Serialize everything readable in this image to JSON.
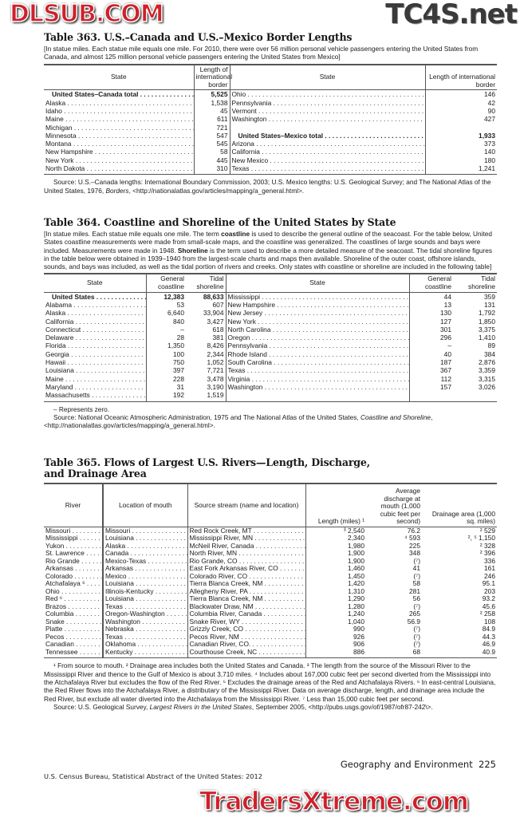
{
  "t363": {
    "title": "Table 363. U.S.–Canada and U.S.–Mexico Border Lengths",
    "intro": "[In statue miles. Each statue mile equals one mile. For 2010, there were over 56 million personal vehicle passengers entering the United States from Canada, and almost 125 million personal vehicle passengers entering the United States from Mexico]",
    "headers": [
      "State",
      "Length of international border",
      "State",
      "Length of international border"
    ],
    "rows": [
      [
        {
          "s": "United States–Canada total",
          "b": true,
          "i": true
        },
        "5,525",
        {
          "s": "Ohio"
        },
        "146"
      ],
      [
        {
          "s": "Alaska"
        },
        "1,538",
        {
          "s": "Pennsylvania"
        },
        "42"
      ],
      [
        {
          "s": "Idaho"
        },
        "45",
        {
          "s": "Vermont"
        },
        "90"
      ],
      [
        {
          "s": "Maine"
        },
        "611",
        {
          "s": "Washington"
        },
        "427"
      ],
      [
        {
          "s": "Michigan"
        },
        "721",
        {
          "s": "",
          "nodots": true
        },
        ""
      ],
      [
        {
          "s": "Minnesota"
        },
        "547",
        {
          "s": "United States–Mexico total",
          "b": true,
          "i": true
        },
        "1,933"
      ],
      [
        {
          "s": "Montana"
        },
        "545",
        {
          "s": "Arizona"
        },
        "373"
      ],
      [
        {
          "s": "New Hampshire"
        },
        "58",
        {
          "s": "California"
        },
        "140"
      ],
      [
        {
          "s": "New York"
        },
        "445",
        {
          "s": "New Mexico"
        },
        "180"
      ],
      [
        {
          "s": "North Dakota"
        },
        "310",
        {
          "s": "Texas"
        },
        "1,241"
      ]
    ],
    "source_pre": "Source: U.S.–Canada lengths: International Boundary Commission, 2003; U.S. Mexico lengths: U.S. Geological Survey; and The National Atlas of the United States, 1976, ",
    "source_italic": "Borders",
    "source_post": ", <http://nationalatlas.gov/articles/mapping/a_general.html>."
  },
  "t364": {
    "title": "Table 364. Coastline and Shoreline of the United States by State",
    "intro_parts": [
      "[In statue miles. Each statue mile equals one mile. The term ",
      "coastline",
      " is used to describe the general outline of the seacoast. For the table below, United States coastline measurements were made from small-scale maps, and the coastline was generalized. The coastlines of large sounds and bays were included. Measurements were made in 1948. ",
      "Shoreline",
      " is the term used to describe a more detailed measure of the seacoast. The tidal shoreline figures in the table below were obtained in 1939–1940 from the largest-scale charts and maps then available. Shoreline of the outer coast, offshore islands, sounds, and bays was included, as well as the tidal portion of rivers and creeks. Only states with coastline or shoreline are included in the following table]"
    ],
    "headers": [
      "State",
      "General coastline",
      "Tidal shoreline",
      "State",
      "General coastline",
      "Tidal shoreline"
    ],
    "rows": [
      [
        {
          "s": "United States",
          "b": true,
          "i": true
        },
        "12,383",
        "88,633",
        {
          "s": "Mississippi"
        },
        "44",
        "359"
      ],
      [
        {
          "s": "Alabama"
        },
        "53",
        "607",
        {
          "s": "New Hampshire"
        },
        "13",
        "131"
      ],
      [
        {
          "s": "Alaska"
        },
        "6,640",
        "33,904",
        {
          "s": "New Jersey"
        },
        "130",
        "1,792"
      ],
      [
        {
          "s": "California"
        },
        "840",
        "3,427",
        {
          "s": "New York"
        },
        "127",
        "1,850"
      ],
      [
        {
          "s": "Connecticut"
        },
        "–",
        "618",
        {
          "s": "North Carolina"
        },
        "301",
        "3,375"
      ],
      [
        {
          "s": "Delaware"
        },
        "28",
        "381",
        {
          "s": "Oregon"
        },
        "296",
        "1,410"
      ],
      [
        {
          "s": "Florida"
        },
        "1,350",
        "8,426",
        {
          "s": "Pennsylvania"
        },
        "–",
        "89"
      ],
      [
        {
          "s": "Georgia"
        },
        "100",
        "2,344",
        {
          "s": "Rhode Island"
        },
        "40",
        "384"
      ],
      [
        {
          "s": "Hawaii"
        },
        "750",
        "1,052",
        {
          "s": "South Carolina"
        },
        "187",
        "2,876"
      ],
      [
        {
          "s": "Louisiana"
        },
        "397",
        "7,721",
        {
          "s": "Texas"
        },
        "367",
        "3,359"
      ],
      [
        {
          "s": "Maine"
        },
        "228",
        "3,478",
        {
          "s": "Virginia"
        },
        "112",
        "3,315"
      ],
      [
        {
          "s": "Maryland"
        },
        "31",
        "3,190",
        {
          "s": "Washington"
        },
        "157",
        "3,026"
      ],
      [
        {
          "s": "Massachusetts"
        },
        "192",
        "1,519",
        {
          "s": "",
          "nodots": true
        },
        "",
        ""
      ]
    ],
    "note": "– Represents zero.",
    "source_pre": "Source: National Oceanic Atmospheric Administration, 1975 and The National Atlas of the United States, ",
    "source_italic": "Coastline and Shoreline",
    "source_post": ", <http://nationalatlas.gov/articles/mapping/a_general.html>."
  },
  "t365": {
    "title": "Table 365. Flows of Largest U.S. Rivers—Length, Discharge, and Drainage Area",
    "headers": [
      "River",
      "Location of mouth",
      "Source stream (name and location)",
      "Length (miles) ¹",
      "Average discharge at mouth (1,000 cubic feet per second)",
      "Drainage area (1,000 sq. miles)"
    ],
    "rows": [
      [
        "Missouri",
        "Missouri",
        "Red Rock Creek, MT",
        "³ 2,540",
        "76.2",
        "² 529"
      ],
      [
        "Mississippi",
        "Louisiana",
        "Mississippi River, MN",
        "2,340",
        "⁴ 593",
        "², ⁵ 1,150"
      ],
      [
        "Yukon",
        "Alaska",
        "McNeil River, Canada",
        "1,980",
        "225",
        "² 328"
      ],
      [
        "St. Lawrence",
        "Canada",
        "North River, MN",
        "1,900",
        "348",
        "² 396"
      ],
      [
        "Rio Grande",
        "Mexico-Texas",
        "Rio Grande, CO",
        "1,900",
        "(⁷)",
        "336"
      ],
      [
        "Arkansas",
        "Arkansas",
        "East Fork Arkansas River, CO",
        "1,460",
        "41",
        "161"
      ],
      [
        "Colorado",
        "Mexico",
        "Colorado River, CO",
        "1,450",
        "(⁷)",
        "246"
      ],
      [
        "Atchafalaya ⁶",
        "Louisiana",
        "Tierra Blanca Creek, NM",
        "1,420",
        "58",
        "95.1"
      ],
      [
        "Ohio",
        "Illinois-Kentucky",
        "Allegheny River, PA",
        "1,310",
        "281",
        "203"
      ],
      [
        "Red ⁶",
        "Louisiana",
        "Tierra Blanca Creek, NM",
        "1,290",
        "56",
        "93.2"
      ],
      [
        "Brazos",
        "Texas",
        "Blackwater Draw, NM",
        "1,280",
        "(⁷)",
        "45.6"
      ],
      [
        "Columbia",
        "Oregon-Washington",
        "Columbia River, Canada",
        "1,240",
        "265",
        "² 258"
      ],
      [
        "Snake",
        "Washington",
        "Snake River, WY",
        "1,040",
        "56.9",
        "108"
      ],
      [
        "Platte",
        "Nebraska",
        "Grizzly Creek, CO",
        "990",
        "(⁷)",
        "84.9"
      ],
      [
        "Pecos",
        "Texas",
        "Pecos River, NM",
        "926",
        "(⁷)",
        "44.3"
      ],
      [
        "Canadian",
        "Oklahoma",
        "Canadian River, CO.",
        "906",
        "(⁷)",
        "46.9"
      ],
      [
        "Tennessee",
        "Kentucky",
        "Courthouse Creek, NC",
        "886",
        "68",
        "40.9"
      ]
    ],
    "footnotes": "¹ From source to mouth. ² Drainage area includes both the United States and Canada. ³ The length from the source of the Missouri River to the Mississippi River and thence to the Gulf of Mexico is about 3,710 miles. ⁴ Includes about 167,000 cubic feet per second diverted from the Mississippi into the Atchafalaya River but excludes the flow of the Red River. ⁵ Excludes the drainage areas of the Red and Atchafalaya Rivers. ⁶ In east-central Louisiana, the Red River flows into the Atchafalaya River, a distributary of the Mississippi River. Data on average discharge, length, and drainage area include the Red River, but exclude all water diverted into the Atchafalaya from the Mississippi River. ⁷ Less than 15,000 cubic feet per second.",
    "source_pre": "Source: U.S. Geological Survey, ",
    "source_italic": "Largest Rivers in the United States",
    "source_post": ", September 2005, <http://pubs.usgs.gov/of/1987/ofr87-242\\>."
  },
  "footer": {
    "section": "Geography and Environment  225",
    "publication": "U.S. Census Bureau, Statistical Abstract of the United States: 2012"
  },
  "watermarks": [
    "TC4S.net",
    "DLSUB.COM",
    "TradersXtreme.com"
  ]
}
